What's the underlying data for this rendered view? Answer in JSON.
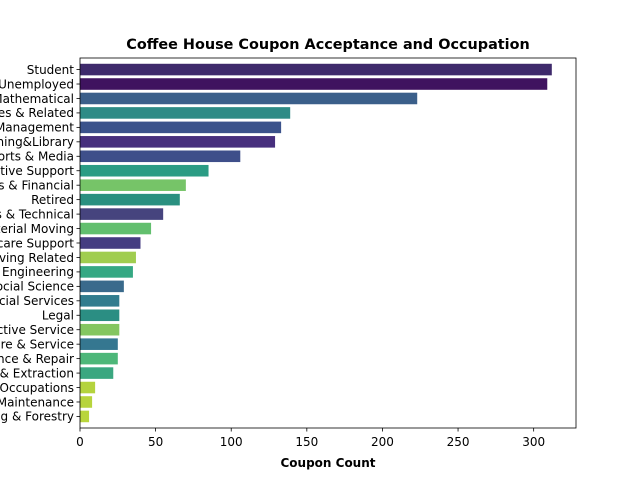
{
  "chart_data": {
    "type": "bar",
    "orientation": "horizontal",
    "title": "Coffee House Coupon Acceptance and Occupation",
    "xlabel": "Coupon Count",
    "ylabel": "",
    "xlim": [
      0,
      328
    ],
    "xticks": [
      0,
      50,
      100,
      150,
      200,
      250,
      300
    ],
    "grid": false,
    "categories": [
      "Student",
      "Unemployed",
      "Computer & Mathematical",
      "Sales & Related",
      "Management",
      "Education&Training&Library",
      "Arts Design Entertainment Sports & Media",
      "Office & Administrative Support",
      "Business & Financial",
      "Retired",
      "Healthcare Practitioners & Technical",
      "Transportation & Material Moving",
      "Healthcare Support",
      "Food Preparation & Serving Related",
      "Architecture & Engineering",
      "Life Physical Social Science",
      "Community & Social Services",
      "Legal",
      "Protective Service",
      "Personal Care & Service",
      "Installation Maintenance & Repair",
      "Construction & Extraction",
      "Production Occupations",
      "Building & Grounds Cleaning & Maintenance",
      "Farming Fishing & Forestry"
    ],
    "tick_labels": [
      "Student",
      "Unemployed",
      "Computer & Mathematical",
      "Sales & Related",
      "Management",
      "Education&Training&Library",
      "Arts Design Entertainment Sports & Media",
      "Office & Administrative Support",
      "Business & Financial",
      "Retired",
      "Healthcare Practitioners & Technical",
      "Transportation & Material Moving",
      "Healthcare Support",
      "Food Preparation & Serving Related",
      "Architecture & Engineering",
      "Life Physical Social Science",
      "Community & Social Services",
      "Legal",
      "Protective Service",
      "Personal Care & Service",
      "Installation Maintenance & Repair",
      "Construction & Extraction",
      "Production Occupations",
      "Building & Grounds Cleaning & Maintenance",
      "Farming Fishing & Forestry"
    ],
    "values": [
      312,
      309,
      223,
      139,
      133,
      129,
      106,
      85,
      70,
      66,
      55,
      47,
      40,
      37,
      35,
      29,
      26,
      26,
      26,
      25,
      25,
      22,
      10,
      8,
      6
    ],
    "colors": [
      "#3e2a6b",
      "#3f135f",
      "#3b5f8a",
      "#2e8b86",
      "#3b528b",
      "#472f7d",
      "#3e4f8a",
      "#2b9c84",
      "#76c468",
      "#2a9080",
      "#46447e",
      "#62bf6e",
      "#453c81",
      "#a0cd4f",
      "#35a883",
      "#3a6a8c",
      "#317c8e",
      "#2b8e83",
      "#84c660",
      "#357790",
      "#4db779",
      "#3aa780",
      "#b4d33d",
      "#b7d43c",
      "#b9d53b"
    ]
  }
}
